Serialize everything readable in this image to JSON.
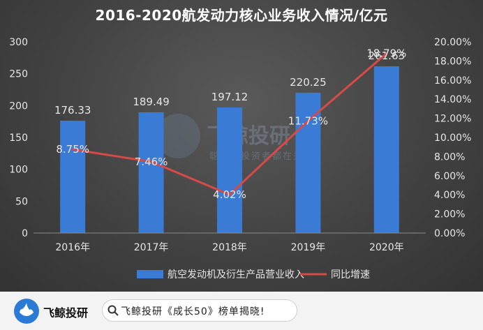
{
  "title": "2016-2020航发动力核心业务收入情况/亿元",
  "watermark": {
    "brand": "飞鲸投研",
    "tagline": "聪明的投资者都在关注"
  },
  "colors": {
    "bar": "#3a7bd5",
    "line": "#d84a47",
    "text": "#e6e6e6",
    "panel": "#424242"
  },
  "chart_data": {
    "type": "bar",
    "categories": [
      "2016年",
      "2017年",
      "2018年",
      "2019年",
      "2020年"
    ],
    "series": [
      {
        "name": "航空发动机及衍生产品营业收入",
        "type": "bar",
        "axis": "left",
        "values": [
          176.33,
          189.49,
          197.12,
          220.25,
          261.63
        ],
        "labels": [
          "176.33",
          "189.49",
          "197.12",
          "220.25",
          "261.63"
        ]
      },
      {
        "name": "同比增速",
        "type": "line",
        "axis": "right",
        "values": [
          8.75,
          7.46,
          4.02,
          11.73,
          18.79
        ],
        "labels": [
          "8.75%",
          "7.46%",
          "4.02%",
          "11.73%",
          "18.79%"
        ]
      }
    ],
    "y_left": {
      "min": 0,
      "max": 300,
      "ticks": [
        "0",
        "50",
        "100",
        "150",
        "200",
        "250",
        "300"
      ]
    },
    "y_right": {
      "min": 0,
      "max": 20,
      "ticks": [
        "0.00%",
        "2.00%",
        "4.00%",
        "6.00%",
        "8.00%",
        "10.00%",
        "12.00%",
        "14.00%",
        "16.00%",
        "18.00%",
        "20.00%"
      ]
    },
    "grid": false,
    "legend": "bottom"
  },
  "footer": {
    "brand": "飞鲸投研",
    "search_text": "飞鲸投研《成长50》榜单揭晓!"
  }
}
